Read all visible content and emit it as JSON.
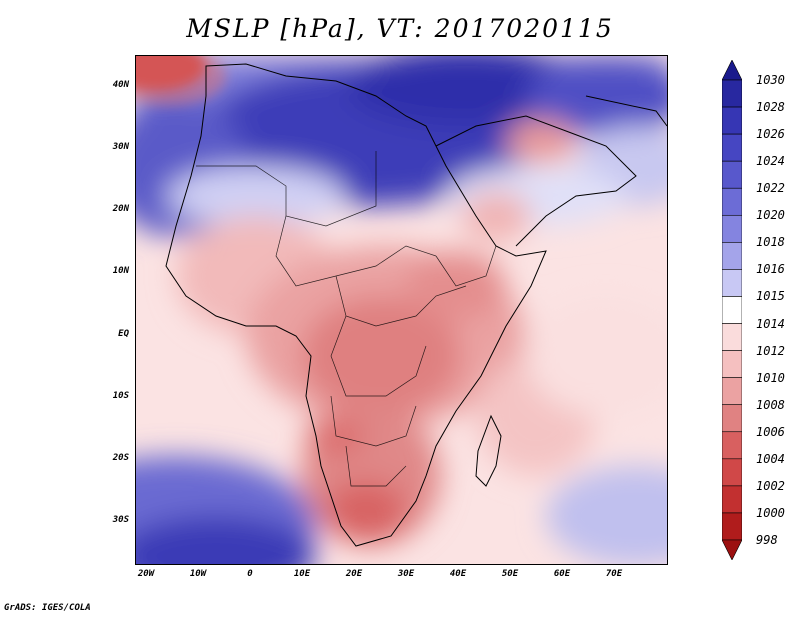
{
  "title": "MSLP [hPa], VT: 2017020115",
  "credit": "GrADS: IGES/COLA",
  "map": {
    "variable": "Mean Sea Level Pressure",
    "units": "hPa",
    "valid_time": "2017020115",
    "lat_labels": [
      "40N",
      "30N",
      "20N",
      "10N",
      "EQ",
      "10S",
      "20S",
      "30S"
    ],
    "lon_labels": [
      "20W",
      "10W",
      "0",
      "10E",
      "20E",
      "30E",
      "40E",
      "50E",
      "60E",
      "70E"
    ],
    "extent": {
      "lon_min": -21,
      "lon_max": 80,
      "lat_min": -37,
      "lat_max": 45
    }
  },
  "colorbar": {
    "levels": [
      "1030",
      "1028",
      "1026",
      "1024",
      "1022",
      "1020",
      "1018",
      "1016",
      "1015",
      "1014",
      "1012",
      "1010",
      "1008",
      "1006",
      "1004",
      "1002",
      "1000",
      "998"
    ],
    "colors": [
      "#1a1a8c",
      "#2828a0",
      "#3636b4",
      "#4646c2",
      "#5858cc",
      "#6c6cd6",
      "#8484e0",
      "#a4a4ea",
      "#c8c8f4",
      "#ffffff",
      "#fadcdc",
      "#f5c0c0",
      "#eba2a2",
      "#e08282",
      "#d86060",
      "#d04848",
      "#c23030",
      "#b01c1c",
      "#9c1010"
    ]
  }
}
